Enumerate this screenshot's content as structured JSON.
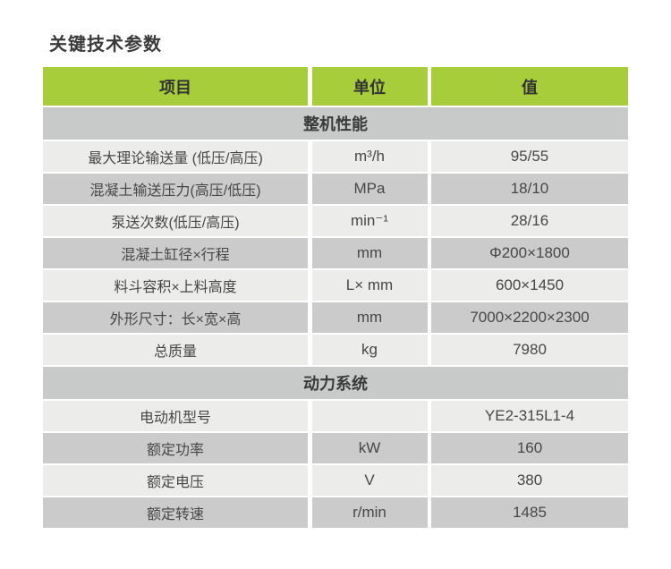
{
  "page": {
    "title": "关键技术参数"
  },
  "table": {
    "headers": {
      "item": "项目",
      "unit": "单位",
      "value": "值"
    },
    "rows": [
      {
        "type": "section",
        "label": "整机性能"
      },
      {
        "type": "data",
        "label": "最大理论输送量 (低压/高压)",
        "unit": "m³/h",
        "value": "95/55"
      },
      {
        "type": "data",
        "label": "混凝土输送压力(高压/低压)",
        "unit": "MPa",
        "value": "18/10"
      },
      {
        "type": "data",
        "label": "泵送次数(低压/高压)",
        "unit": "min⁻¹",
        "value": "28/16"
      },
      {
        "type": "data",
        "label": "混凝土缸径×行程",
        "unit": "mm",
        "value": "Φ200×1800"
      },
      {
        "type": "data",
        "label": "料斗容积×上料高度",
        "unit": "L× mm",
        "value": "600×1450"
      },
      {
        "type": "data",
        "label": "外形尺寸：长×宽×高",
        "unit": "mm",
        "value": "7000×2200×2300"
      },
      {
        "type": "data",
        "label": "总质量",
        "unit": "kg",
        "value": "7980"
      },
      {
        "type": "section",
        "label": "动力系统"
      },
      {
        "type": "data",
        "label": "电动机型号",
        "unit": "",
        "value": "YE2-315L1-4"
      },
      {
        "type": "data",
        "label": "额定功率",
        "unit": "kW",
        "value": "160"
      },
      {
        "type": "data",
        "label": "额定电压",
        "unit": "V",
        "value": "380"
      },
      {
        "type": "data",
        "label": "额定转速",
        "unit": "r/min",
        "value": "1485"
      }
    ],
    "colors": {
      "header_green": "#a7cd3a",
      "section_gray": "#c8c9c9",
      "row_light": "#ececea",
      "row_dark": "#cbcbcb",
      "text": "#474747"
    }
  }
}
